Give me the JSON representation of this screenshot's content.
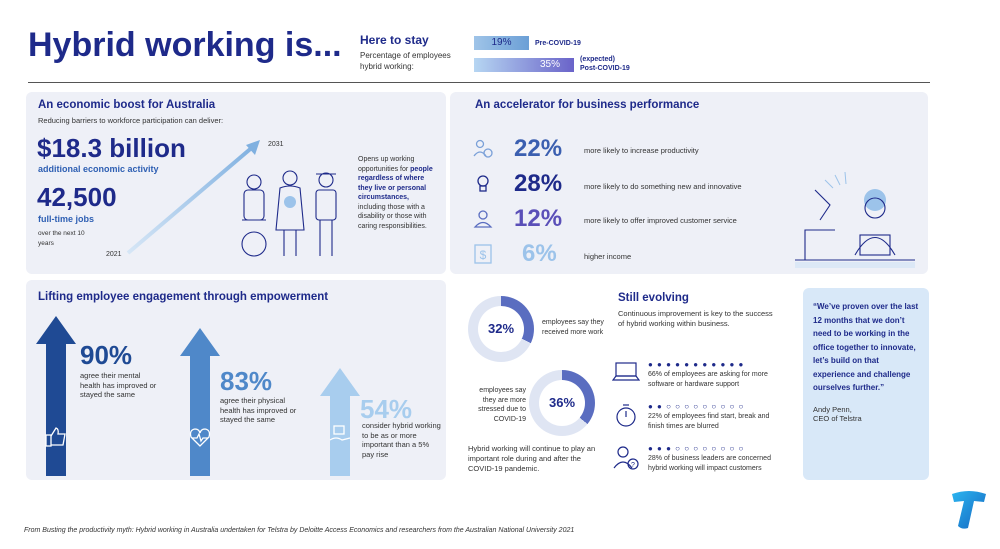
{
  "title": "Hybrid working is...",
  "here_to_stay": {
    "title": "Here to stay",
    "subtitle": "Percentage of employees hybrid working:",
    "pre_value": "19%",
    "pre_label": "Pre-COVID-19",
    "post_value": "35%",
    "post_expected": "(expected)",
    "post_label": "Post-COVID-19"
  },
  "economic": {
    "heading": "An economic boost for Australia",
    "sub": "Reducing barriers to workforce participation can deliver:",
    "billion": "$18.3 billion",
    "billion_label": "additional economic activity",
    "jobs": "42,500",
    "jobs_label": "full-time jobs",
    "jobs_period": "over the next 10 years",
    "year_start": "2021",
    "year_end": "2031",
    "desc_1": "Opens up working opportunities for",
    "desc_bold": "people regardless of where they live or personal circumstances,",
    "desc_2": "including those with a disability or those with caring responsibilities."
  },
  "accelerator": {
    "heading": "An accelerator for business performance",
    "items": [
      {
        "value": "22%",
        "label": "more likely to increase productivity",
        "icon": "people-gear-icon"
      },
      {
        "value": "28%",
        "label": "more likely to do something new and innovative",
        "icon": "lightbulb-icon"
      },
      {
        "value": "12%",
        "label": "more likely to offer improved customer service",
        "icon": "person-icon"
      },
      {
        "value": "6%",
        "label": "higher income",
        "icon": "dollar-icon"
      }
    ]
  },
  "engagement": {
    "heading": "Lifting employee engagement through empowerment",
    "items": [
      {
        "value": "90%",
        "label": "agree their mental health has improved or stayed the same",
        "icon": "thumbs-up-icon"
      },
      {
        "value": "83%",
        "label": "agree their physical health has improved or stayed the same",
        "icon": "heart-pulse-icon"
      },
      {
        "value": "54%",
        "label": "consider hybrid working to be as or more important than a 5% pay rise",
        "icon": "hand-money-icon"
      }
    ]
  },
  "donuts": {
    "d1_value": "32%",
    "d1_label": "employees say they received more work",
    "d2_value": "36%",
    "d2_label": "employees say they are more stressed due to COVID-19",
    "note": "Hybrid working will continue to play an important role during and after the COVID-19 pandemic."
  },
  "evolving": {
    "heading": "Still evolving",
    "sub": "Continuous improvement is key to the success of hybrid working within business.",
    "items": [
      {
        "label": "66% of employees are asking for more software or hardware support",
        "icon": "laptop-icon"
      },
      {
        "label": "22% of employees find start, break and finish times are blurred",
        "icon": "stopwatch-icon"
      },
      {
        "label": "28% of business leaders are concerned hybrid working will impact customers",
        "icon": "person-question-icon"
      }
    ]
  },
  "quote": {
    "text": "“We’ve proven over the last 12 months that we don’t need to be working in the office together to innovate, let’s build on that experience and challenge ourselves further.”",
    "author": "Andy Penn,",
    "role": "CEO of Telstra"
  },
  "footer": "From Busting the productivity myth: Hybrid working in Australia undertaken for Telstra by Deloitte Access Economics and researchers from the Australian National University 2021",
  "colors": {
    "navy": "#1e2a8a",
    "blue": "#2e5fb3",
    "mid": "#5a8fd0",
    "light": "#9cc3ea",
    "purple": "#6a63c9"
  }
}
